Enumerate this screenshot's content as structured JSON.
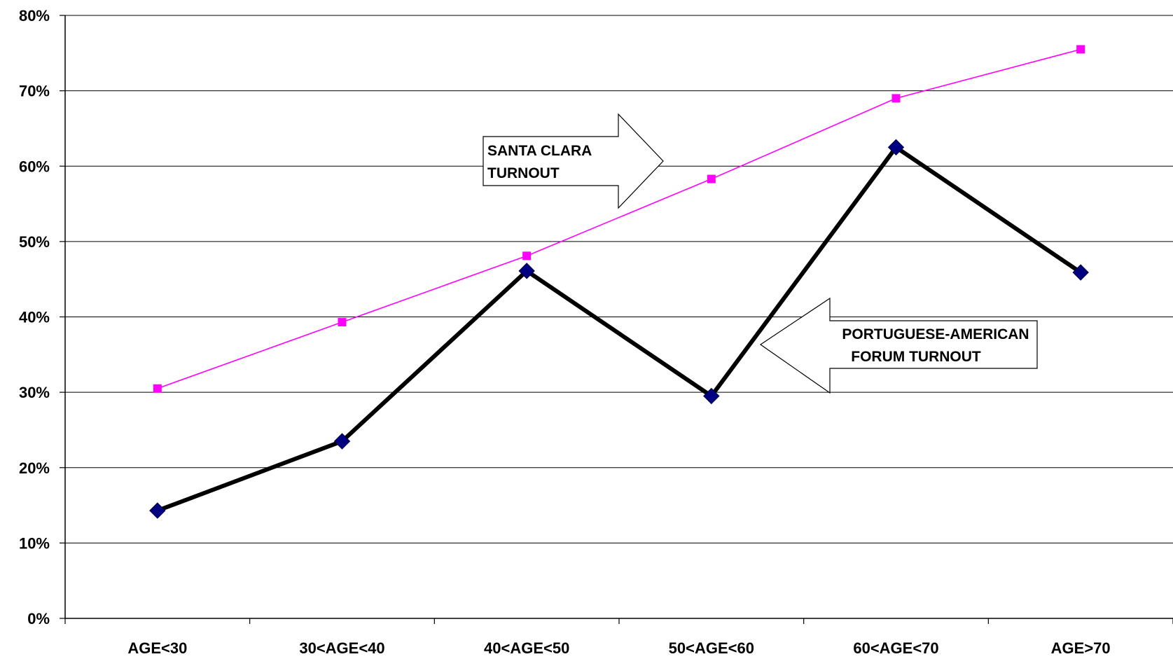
{
  "chart_data": {
    "type": "line",
    "categories": [
      "AGE<30",
      "30<AGE<40",
      "40<AGE<50",
      "50<AGE<60",
      "60<AGE<70",
      "AGE>70"
    ],
    "series": [
      {
        "values": [
          30.5,
          39.3,
          48.1,
          58.3,
          69.0,
          75.5
        ],
        "color": "#ff00ff",
        "marker": "square"
      },
      {
        "values": [
          14.3,
          23.5,
          46.1,
          29.5,
          62.5,
          45.9
        ],
        "color": "#000000",
        "marker_color": "#000080",
        "marker": "diamond"
      }
    ],
    "ylim": [
      0,
      80
    ],
    "yticks": [
      "0%",
      "10%",
      "20%",
      "30%",
      "40%",
      "50%",
      "60%",
      "70%",
      "80%"
    ],
    "grid": true,
    "annotations": [
      {
        "id": "santa-clara",
        "lines": [
          "SANTA CLARA",
          "TURNOUT"
        ],
        "arrow": "right"
      },
      {
        "id": "forum",
        "lines": [
          "PORTUGUESE-AMERICAN",
          "FORUM TURNOUT"
        ],
        "arrow": "left"
      }
    ]
  }
}
